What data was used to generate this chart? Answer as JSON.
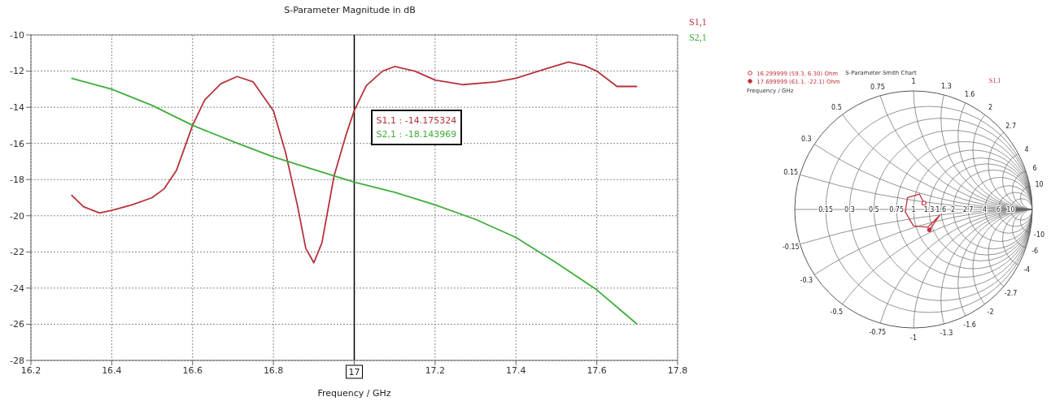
{
  "chart_data": [
    {
      "type": "line",
      "title": "S-Parameter Magnitude in dB",
      "xlabel": "Frequency / GHz",
      "xlim": [
        16.2,
        17.8
      ],
      "xticks": [
        16.2,
        16.4,
        16.6,
        16.8,
        {
          "value": 17,
          "label": null
        },
        17.2,
        17.4,
        17.6,
        17.8
      ],
      "ylim": [
        -28,
        -10
      ],
      "yticks": [
        -28,
        -26,
        -24,
        -22,
        -20,
        -18,
        -16,
        -14,
        -12,
        -10
      ],
      "grid": true,
      "legend": "top right",
      "marker": "none",
      "line_style": "solid",
      "series": [
        {
          "name": "S1,1",
          "color": "#b5343c",
          "x": [
            16.3,
            16.33,
            16.37,
            16.4,
            16.45,
            16.5,
            16.53,
            16.56,
            16.6,
            16.63,
            16.67,
            16.71,
            16.75,
            16.8,
            16.83,
            16.86,
            16.88,
            16.9,
            16.92,
            16.95,
            16.98,
            17.0,
            17.03,
            17.07,
            17.1,
            17.15,
            17.2,
            17.27,
            17.35,
            17.4,
            17.47,
            17.53,
            17.57,
            17.6,
            17.65,
            17.7
          ],
          "values": [
            -18.85,
            -19.5,
            -19.85,
            -19.7,
            -19.4,
            -19.0,
            -18.5,
            -17.5,
            -15.0,
            -13.6,
            -12.7,
            -12.3,
            -12.6,
            -14.2,
            -16.5,
            -19.5,
            -21.8,
            -22.6,
            -21.5,
            -17.8,
            -15.5,
            -14.18,
            -12.8,
            -12.0,
            -11.75,
            -12.0,
            -12.5,
            -12.75,
            -12.6,
            -12.4,
            -11.9,
            -11.5,
            -11.7,
            -12.0,
            -12.85,
            -12.85
          ]
        },
        {
          "name": "S2,1",
          "color": "#3fae3a",
          "x": [
            16.3,
            16.4,
            16.5,
            16.6,
            16.7,
            16.8,
            16.9,
            17.0,
            17.1,
            17.2,
            17.3,
            17.4,
            17.5,
            17.6,
            17.7
          ],
          "values": [
            -12.4,
            -13.0,
            -13.9,
            -15.0,
            -15.9,
            -16.75,
            -17.45,
            -18.14,
            -18.7,
            -19.4,
            -20.2,
            -21.2,
            -22.6,
            -24.1,
            -26.0
          ]
        }
      ],
      "ref_lines": [
        {
          "axis": "x",
          "value": 17,
          "label": "17",
          "color": "#000000"
        }
      ],
      "annotations": [
        "S1,1 : -14.175324",
        "S2,1 : -18.143969"
      ]
    },
    {
      "type": "other",
      "title": "S-Parameter Smith Chart",
      "legend_title": "Frequency / GHz",
      "series": [
        {
          "name": "S1,1",
          "color": "#c0323c"
        }
      ],
      "annotations": [
        "16.299999 (59.3, 6.30) Ohm",
        "17.699999 (61.1, -22.1) Ohm",
        "0.15",
        "0.3",
        "0.5",
        "0.75",
        "1",
        "1.3",
        "1.6",
        "2",
        "2.7",
        "4",
        "6",
        "10",
        "0.15",
        "0.3",
        "0.5",
        "0.75",
        "1",
        "1.3",
        "1.6",
        "2",
        "2.7",
        "4",
        "6",
        "10",
        "-0.15",
        "-0.3",
        "-0.5",
        "-0.75",
        "-1",
        "-1.3",
        "-1.6",
        "-2",
        "-2.7",
        "-4",
        "-6",
        "-10"
      ]
    }
  ]
}
